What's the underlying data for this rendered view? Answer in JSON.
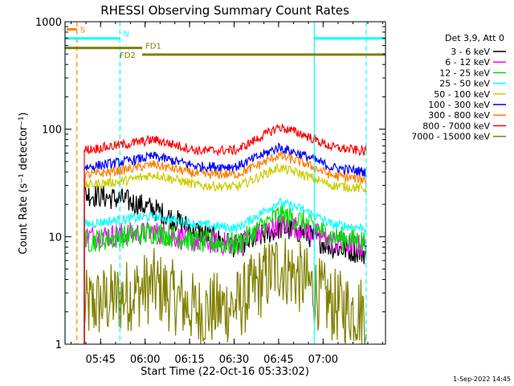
{
  "chart_data": {
    "type": "line",
    "title": "RHESSI Observing Summary Count Rates",
    "xlabel": "Start Time (22-Oct-16 05:33:02)",
    "ylabel": "Count Rate (s⁻¹ detector⁻¹)",
    "y_scale": "log",
    "ylim": [
      1,
      1000
    ],
    "x_unit": "minutes after 05:33:02",
    "xlim": [
      0,
      108
    ],
    "x_ticks": [
      {
        "label": "05:45",
        "value": 11.97
      },
      {
        "label": "06:00",
        "value": 26.97
      },
      {
        "label": "06:15",
        "value": 41.97
      },
      {
        "label": "06:30",
        "value": 56.97
      },
      {
        "label": "06:45",
        "value": 71.97
      },
      {
        "label": "07:00",
        "value": 86.97
      }
    ],
    "y_ticks": [
      {
        "label": "1",
        "value": 1
      },
      {
        "label": "10",
        "value": 10
      },
      {
        "label": "100",
        "value": 100
      },
      {
        "label": "1000",
        "value": 1000
      }
    ],
    "legend_title": "Det 3,9, Att 0",
    "legend_position": "right",
    "data_start": 6.5,
    "data_end": 101.5,
    "series": [
      {
        "name": "3 - 6 keV",
        "color": "#000000",
        "x": [
          6.5,
          20,
          30,
          45,
          58,
          72,
          80,
          90,
          101.5
        ],
        "values": [
          25,
          22,
          18,
          11,
          8,
          12,
          11,
          8,
          7
        ]
      },
      {
        "name": "6 - 12 keV",
        "color": "#ff00ff",
        "x": [
          6.5,
          20,
          30,
          45,
          58,
          72,
          80,
          90,
          101.5
        ],
        "values": [
          10,
          10.5,
          11,
          9,
          8.5,
          13,
          12,
          9,
          8
        ]
      },
      {
        "name": "12 - 25 keV",
        "color": "#00dd00",
        "x": [
          6.5,
          20,
          30,
          45,
          58,
          72,
          80,
          90,
          101.5
        ],
        "values": [
          9,
          10,
          11,
          9,
          8.5,
          16,
          14,
          10,
          9
        ]
      },
      {
        "name": "25 - 50 keV",
        "color": "#00ffff",
        "x": [
          6.5,
          20,
          30,
          45,
          58,
          72,
          80,
          90,
          101.5
        ],
        "values": [
          13,
          14.5,
          15.5,
          13,
          12,
          21,
          18,
          13,
          12
        ]
      },
      {
        "name": "50 - 100 keV",
        "color": "#cccc00",
        "x": [
          6.5,
          20,
          30,
          45,
          58,
          72,
          80,
          90,
          101.5
        ],
        "values": [
          30,
          33,
          38,
          30,
          29,
          44,
          38,
          30,
          28
        ]
      },
      {
        "name": "100 - 300 keV",
        "color": "#0000ff",
        "x": [
          6.5,
          20,
          30,
          45,
          58,
          72,
          80,
          90,
          101.5
        ],
        "values": [
          44,
          50,
          56,
          45,
          45,
          68,
          58,
          44,
          40
        ]
      },
      {
        "name": "300 - 800 keV",
        "color": "#ff8000",
        "x": [
          6.5,
          20,
          30,
          45,
          58,
          72,
          80,
          90,
          101.5
        ],
        "values": [
          37,
          42,
          47,
          38,
          38,
          57,
          49,
          37,
          34
        ]
      },
      {
        "name": "800 - 7000 keV",
        "color": "#ff0000",
        "x": [
          6.5,
          20,
          30,
          45,
          58,
          72,
          80,
          90,
          101.5
        ],
        "values": [
          64,
          72,
          80,
          63,
          64,
          105,
          90,
          68,
          62
        ]
      },
      {
        "name": "7000 - 15000 keV",
        "color": "#808000",
        "x": [
          6.5,
          20,
          30,
          45,
          58,
          72,
          80,
          90,
          101.5
        ],
        "values": [
          2.2,
          2.8,
          3.5,
          2,
          2.3,
          5.5,
          4,
          2.3,
          2
        ]
      }
    ],
    "annotations": [
      {
        "label": "S",
        "color": "#ff8000",
        "x_start": 0.5,
        "x_end": 4,
        "y": 850
      },
      {
        "label": "N",
        "color": "#00ffff",
        "x_start": 0,
        "x_end": 18.5,
        "y": 700
      },
      {
        "label": "FD1",
        "color": "#808000",
        "x_start": 0,
        "x_end": 26,
        "y": 570
      },
      {
        "label": "FD2",
        "color": "#808000",
        "x_start": 26,
        "x_end": 108,
        "y": 495
      },
      {
        "label": "",
        "color": "#00ffff",
        "x_start": 84,
        "x_end": 108,
        "y": 700
      }
    ],
    "vertical_markers": [
      {
        "x": 0,
        "color": "#00ffff",
        "style": "solid"
      },
      {
        "x": 4,
        "color": "#ff8000",
        "style": "dashed"
      },
      {
        "x": 18.5,
        "color": "#00ffff",
        "style": "dashed"
      },
      {
        "x": 84,
        "color": "#00ffff",
        "style": "solid"
      },
      {
        "x": 101.5,
        "color": "#00ffff",
        "style": "dashed"
      }
    ]
  },
  "footer_date": "1-Sep-2022 14:45"
}
